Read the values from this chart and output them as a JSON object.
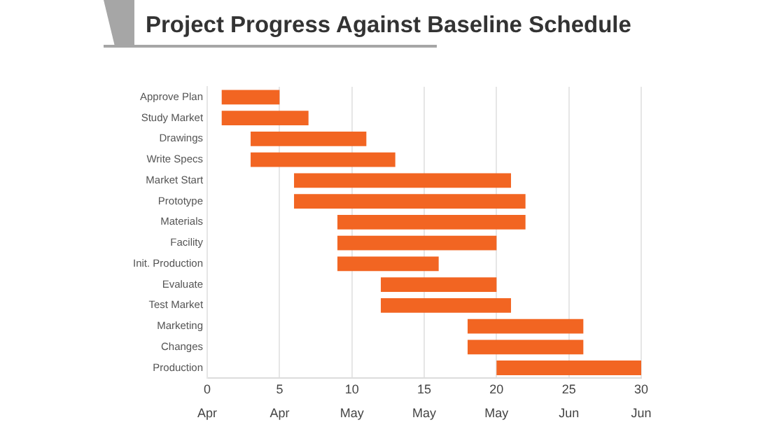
{
  "chart_data": {
    "type": "bar",
    "orientation": "horizontal",
    "title": "Project Progress Against Baseline Schedule",
    "categories": [
      "Approve Plan",
      "Study Market",
      "Drawings",
      "Write Specs",
      "Market Start",
      "Prototype",
      "Materials",
      "Facility",
      "Init. Production",
      "Evaluate",
      "Test Market",
      "Marketing",
      "Changes",
      "Production"
    ],
    "base": [
      1,
      1,
      3,
      3,
      6,
      6,
      9,
      9,
      9,
      12,
      12,
      18,
      18,
      20
    ],
    "values": [
      4,
      6,
      8,
      10,
      15,
      16,
      13,
      11,
      7,
      8,
      9,
      8,
      8,
      10
    ],
    "color": "#f26522",
    "xlim": [
      0,
      30
    ],
    "xticks": [
      0,
      5,
      10,
      15,
      20,
      25,
      30
    ],
    "annotations": [
      "Apr",
      "Apr",
      "May",
      "May",
      "May",
      "Jun",
      "Jun"
    ],
    "grid": "x",
    "legend": false
  }
}
